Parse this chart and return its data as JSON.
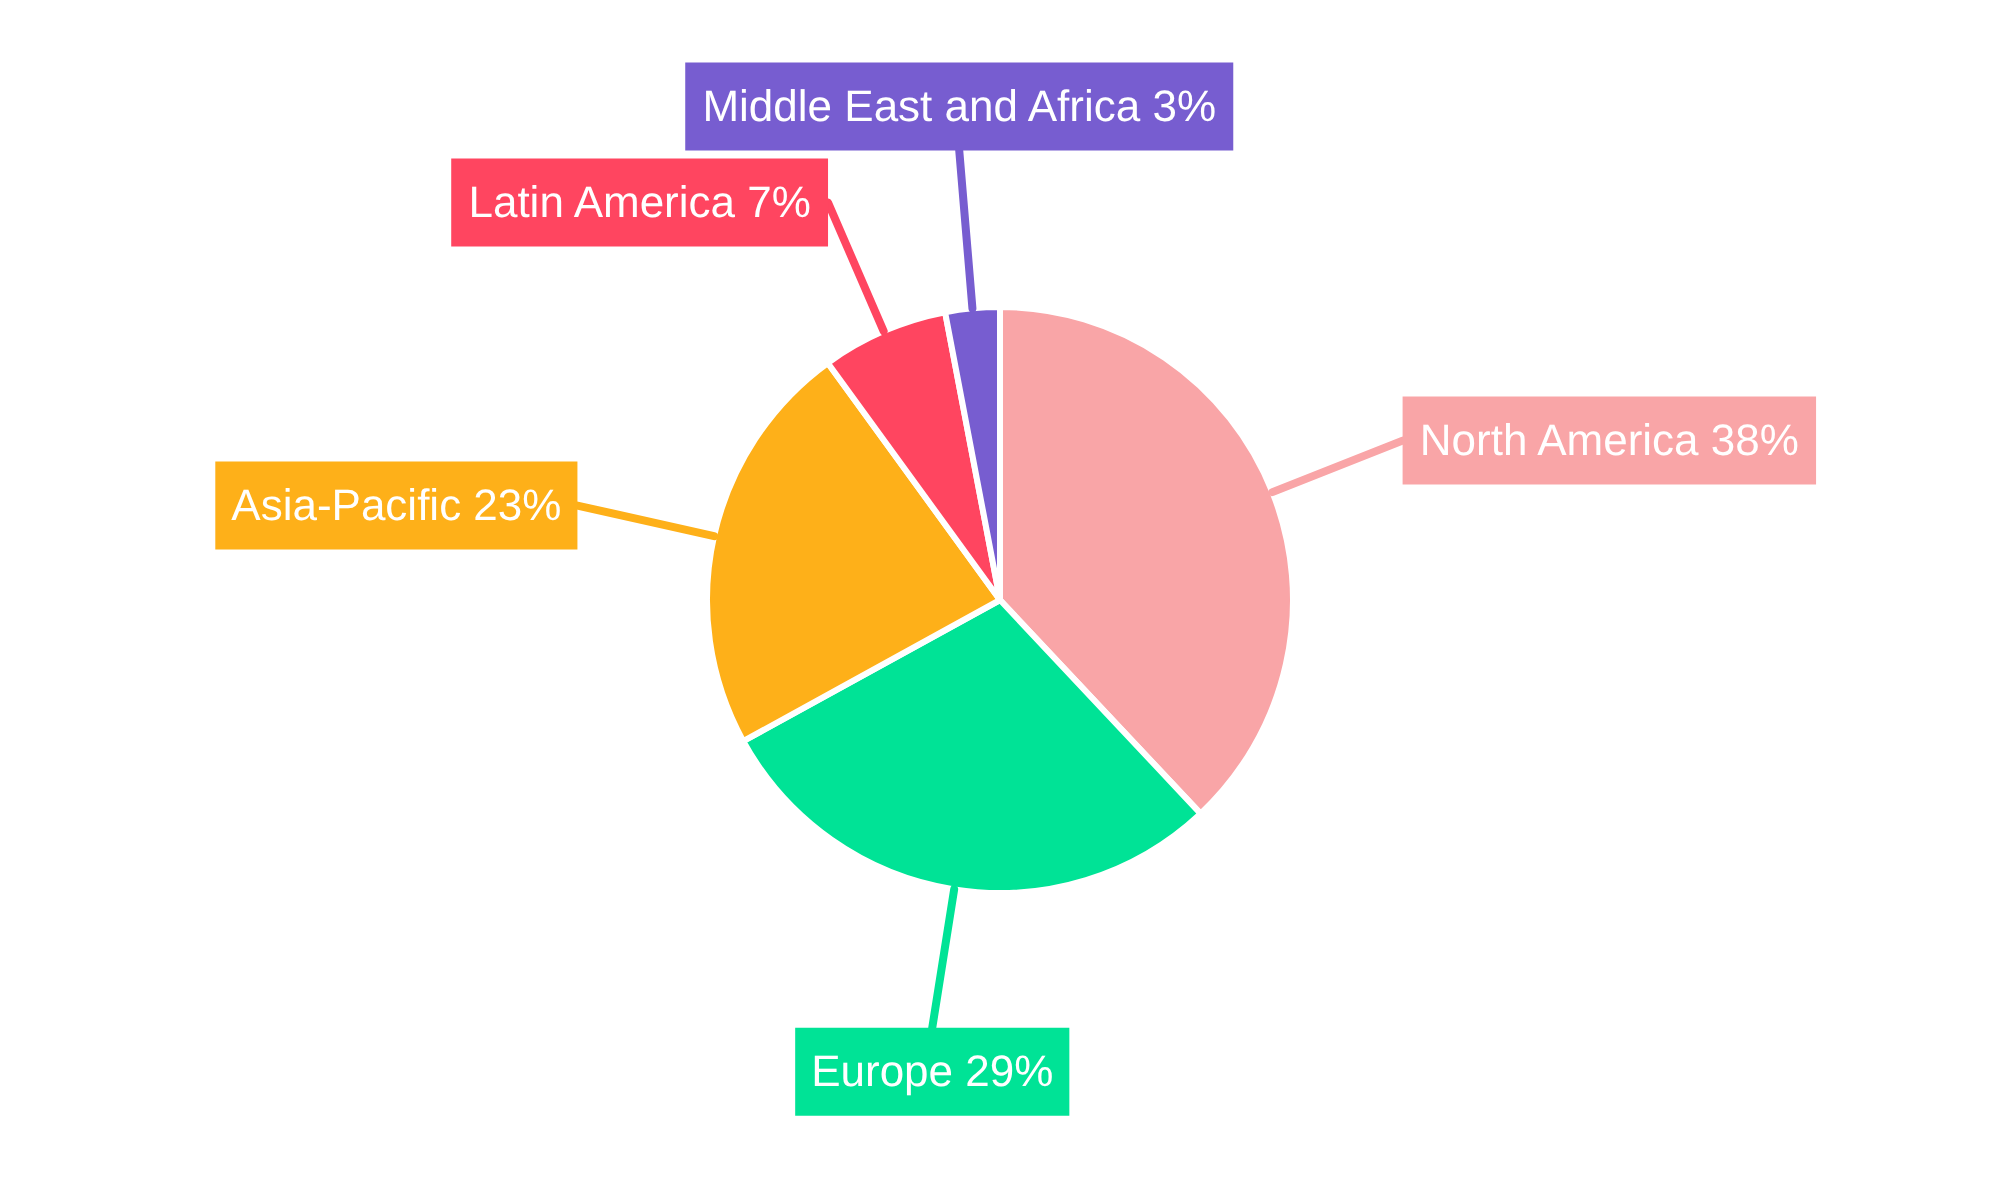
{
  "chart_data": {
    "type": "pie",
    "categories": [
      "North America",
      "Europe",
      "Asia-Pacific",
      "Latin America",
      "Middle East and Africa"
    ],
    "values": [
      38,
      29,
      23,
      7,
      3
    ],
    "value_labels": [
      "38%",
      "29%",
      "23%",
      "7%",
      "3%"
    ],
    "colors": [
      "#f9a5a7",
      "#00e396",
      "#feb019",
      "#ff4560",
      "#775dd0"
    ],
    "legend": false
  }
}
